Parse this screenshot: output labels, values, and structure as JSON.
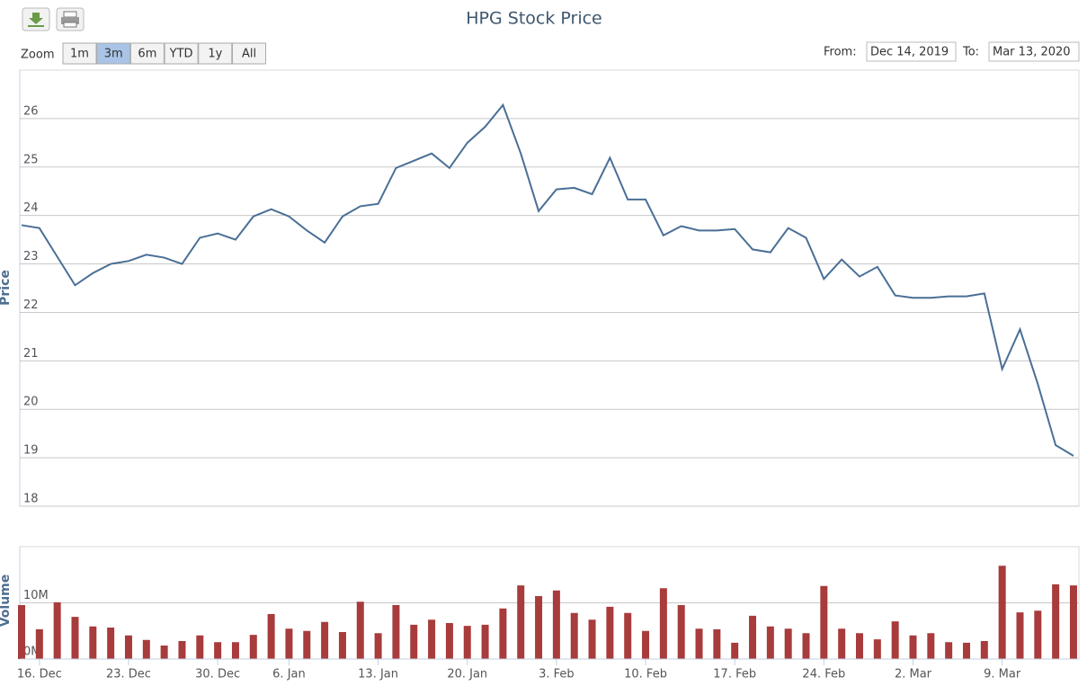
{
  "title": "HPG Stock Price",
  "toolbar": {
    "zoom_label": "Zoom",
    "zoom_buttons": [
      "1m",
      "3m",
      "6m",
      "YTD",
      "1y",
      "All"
    ],
    "selected_zoom": 1,
    "from_label": "From:",
    "from_value": "Dec 14, 2019",
    "to_label": "To:",
    "to_value": "Mar 13, 2020"
  },
  "chart_data": [
    {
      "type": "line",
      "y_label": "Price",
      "color": "#4a6f96",
      "grid": true,
      "ylim": [
        18,
        27
      ],
      "yticks": [
        18,
        19,
        20,
        21,
        22,
        23,
        24,
        25,
        26
      ],
      "values": [
        23.8,
        23.74,
        23.15,
        22.56,
        22.81,
        23.0,
        23.06,
        23.19,
        23.13,
        23.0,
        23.54,
        23.63,
        23.5,
        23.98,
        24.13,
        23.98,
        23.69,
        23.44,
        23.98,
        24.19,
        24.24,
        24.98,
        25.13,
        25.28,
        24.98,
        25.5,
        25.83,
        26.28,
        25.28,
        24.09,
        24.54,
        24.57,
        24.44,
        25.19,
        24.33,
        24.33,
        23.59,
        23.78,
        23.69,
        23.69,
        23.72,
        23.3,
        23.24,
        23.74,
        23.54,
        22.69,
        23.09,
        22.74,
        22.94,
        22.35,
        22.3,
        22.3,
        22.33,
        22.33,
        22.39,
        20.83,
        21.65,
        20.52,
        19.26,
        19.04
      ]
    },
    {
      "type": "bar",
      "y_label": "Volume",
      "color": "#a83b3b",
      "grid": true,
      "ylim": [
        0,
        20000000
      ],
      "yticks": [
        {
          "value": 0,
          "label": "0M"
        },
        {
          "value": 10000000,
          "label": "10M"
        }
      ],
      "categories": [
        null,
        "16. Dec",
        null,
        null,
        null,
        null,
        "23. Dec",
        null,
        null,
        null,
        null,
        "30. Dec",
        null,
        null,
        null,
        "6. Jan",
        null,
        null,
        null,
        null,
        "13. Jan",
        null,
        null,
        null,
        null,
        "20. Jan",
        null,
        null,
        null,
        null,
        "3. Feb",
        null,
        null,
        null,
        null,
        "10. Feb",
        null,
        null,
        null,
        null,
        "17. Feb",
        null,
        null,
        null,
        null,
        "24. Feb",
        null,
        null,
        null,
        null,
        "2. Mar",
        null,
        null,
        null,
        null,
        "9. Mar",
        null,
        null,
        null,
        null
      ],
      "values": [
        9600000,
        5300000,
        10100000,
        7500000,
        5800000,
        5600000,
        4200000,
        3400000,
        2400000,
        3200000,
        4200000,
        3000000,
        3000000,
        4300000,
        8000000,
        5400000,
        5000000,
        6600000,
        4800000,
        10200000,
        4600000,
        9600000,
        6100000,
        7000000,
        6400000,
        5900000,
        6100000,
        9000000,
        13100000,
        11200000,
        12200000,
        8200000,
        7000000,
        9300000,
        8200000,
        5000000,
        12600000,
        9600000,
        5400000,
        5300000,
        2900000,
        7700000,
        5800000,
        5400000,
        4600000,
        13000000,
        5400000,
        4600000,
        3500000,
        6700000,
        4200000,
        4600000,
        3000000,
        2900000,
        3200000,
        16600000,
        8300000,
        8600000,
        13300000,
        13100000
      ]
    }
  ]
}
